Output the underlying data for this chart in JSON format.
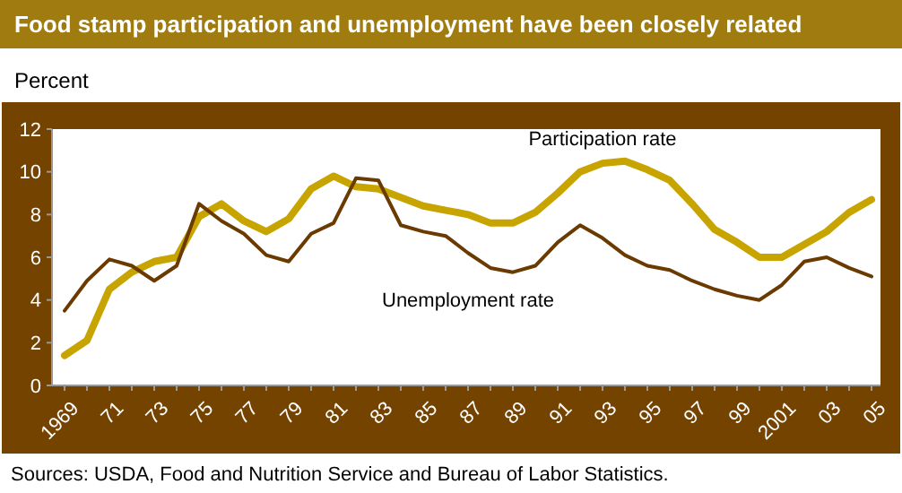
{
  "chart_data": {
    "type": "line",
    "title": "Food stamp participation and unemployment have been closely related",
    "ylabel": "Percent",
    "categories": [
      "1969",
      null,
      "71",
      null,
      "73",
      null,
      "75",
      null,
      "77",
      null,
      "79",
      null,
      "81",
      null,
      "83",
      null,
      "85",
      null,
      "87",
      null,
      "89",
      null,
      "91",
      null,
      "93",
      null,
      "95",
      null,
      "97",
      null,
      "99",
      null,
      "2001",
      null,
      "03",
      null,
      "05"
    ],
    "series": [
      {
        "name": "Participation rate",
        "color": "#c8a400",
        "values": [
          1.4,
          2.1,
          4.5,
          5.3,
          5.8,
          6.0,
          7.9,
          8.5,
          7.7,
          7.2,
          7.8,
          9.2,
          9.8,
          9.3,
          9.2,
          8.8,
          8.4,
          8.2,
          8.0,
          7.6,
          7.6,
          8.1,
          9.0,
          10.0,
          10.4,
          10.5,
          10.1,
          9.6,
          8.5,
          7.3,
          6.7,
          6.0,
          6.0,
          6.6,
          7.2,
          8.1,
          8.7
        ]
      },
      {
        "name": "Unemployment rate",
        "color": "#6b3a00",
        "values": [
          3.5,
          4.9,
          5.9,
          5.6,
          4.9,
          5.6,
          8.5,
          7.7,
          7.1,
          6.1,
          5.8,
          7.1,
          7.6,
          9.7,
          9.6,
          7.5,
          7.2,
          7.0,
          6.2,
          5.5,
          5.3,
          5.6,
          6.7,
          7.5,
          6.9,
          6.1,
          5.6,
          5.4,
          4.9,
          4.5,
          4.2,
          4.0,
          4.7,
          5.8,
          6.0,
          5.5,
          5.1
        ]
      }
    ],
    "ylim": [
      0,
      12
    ],
    "yticks": [
      0,
      2,
      4,
      6,
      8,
      10,
      12
    ],
    "grid": false,
    "annotations": [
      "Sources: USDA, Food and Nutrition Service and Bureau of Labor Statistics."
    ]
  }
}
